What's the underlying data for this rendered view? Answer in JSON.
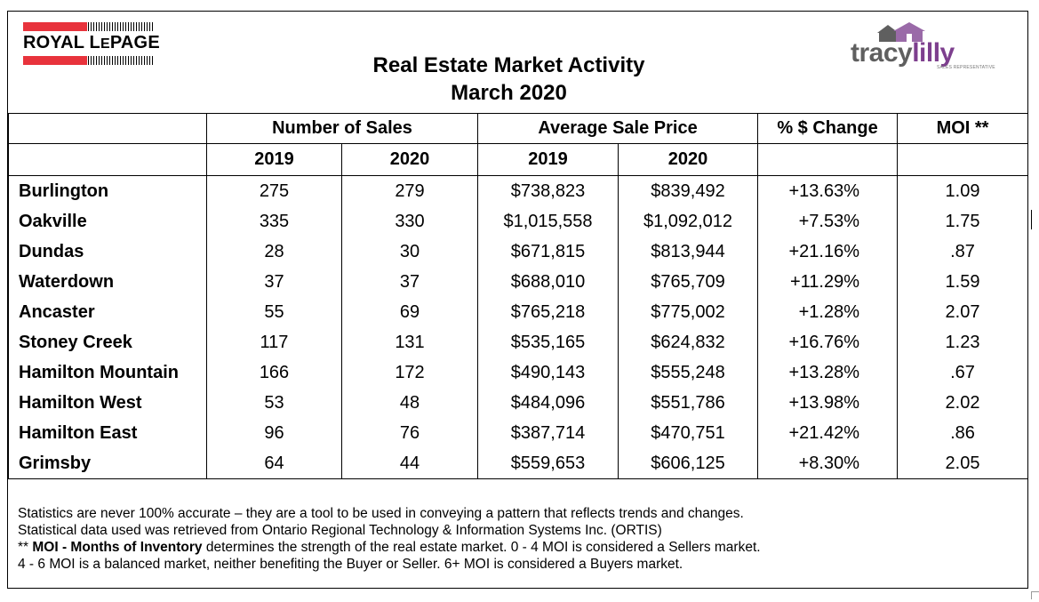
{
  "title": {
    "line1": "Real Estate Market Activity",
    "line2": "March 2020"
  },
  "logos": {
    "left_text_a": "ROYAL L",
    "left_text_b": "E",
    "left_text_c": "PAGE",
    "left_color": "#e8333c",
    "right_word_a": "tracy",
    "right_word_b": "lilly",
    "right_tag": "SALES REPRESENTATIVE",
    "right_color_a": "#5f5f5f",
    "right_color_b": "#7d3f8e"
  },
  "table": {
    "group_headers": [
      "Number of Sales",
      "Average Sale Price",
      "% $ Change",
      "MOI **"
    ],
    "year_headers": [
      "2019",
      "2020",
      "2019",
      "2020"
    ],
    "rows": [
      {
        "area": "Burlington",
        "sales_2019": "275",
        "sales_2020": "279",
        "price_2019": "$738,823",
        "price_2020": "$839,492",
        "change": "+13.63%",
        "moi": "1.09"
      },
      {
        "area": "Oakville",
        "sales_2019": "335",
        "sales_2020": "330",
        "price_2019": "$1,015,558",
        "price_2020": "$1,092,012",
        "change": "+7.53%",
        "moi": "1.75"
      },
      {
        "area": "Dundas",
        "sales_2019": "28",
        "sales_2020": "30",
        "price_2019": "$671,815",
        "price_2020": "$813,944",
        "change": "+21.16%",
        "moi": ".87"
      },
      {
        "area": "Waterdown",
        "sales_2019": "37",
        "sales_2020": "37",
        "price_2019": "$688,010",
        "price_2020": "$765,709",
        "change": "+11.29%",
        "moi": "1.59"
      },
      {
        "area": "Ancaster",
        "sales_2019": "55",
        "sales_2020": "69",
        "price_2019": "$765,218",
        "price_2020": "$775,002",
        "change": "+1.28%",
        "moi": "2.07"
      },
      {
        "area": "Stoney Creek",
        "sales_2019": "117",
        "sales_2020": "131",
        "price_2019": "$535,165",
        "price_2020": "$624,832",
        "change": "+16.76%",
        "moi": "1.23"
      },
      {
        "area": "Hamilton Mountain",
        "sales_2019": "166",
        "sales_2020": "172",
        "price_2019": "$490,143",
        "price_2020": "$555,248",
        "change": "+13.28%",
        "moi": ".67"
      },
      {
        "area": "Hamilton West",
        "sales_2019": "53",
        "sales_2020": "48",
        "price_2019": "$484,096",
        "price_2020": "$551,786",
        "change": "+13.98%",
        "moi": "2.02"
      },
      {
        "area": "Hamilton East",
        "sales_2019": "96",
        "sales_2020": "76",
        "price_2019": "$387,714",
        "price_2020": "$470,751",
        "change": "+21.42%",
        "moi": ".86"
      },
      {
        "area": "Grimsby",
        "sales_2019": "64",
        "sales_2020": "44",
        "price_2019": "$559,653",
        "price_2020": "$606,125",
        "change": "+8.30%",
        "moi": "2.05"
      }
    ]
  },
  "notes": {
    "line1": "Statistics are never 100% accurate – they are a tool to be used in conveying a pattern that reflects trends and changes.",
    "line2": "Statistical data used was retrieved from Ontario Regional Technology & Information Systems Inc. (ORTIS)",
    "line3_prefix": "** ",
    "line3_bold": "MOI - Months of Inventory",
    "line3_rest": " determines the strength of the real estate market. 0 - 4 MOI is considered a Sellers market.",
    "line4": "4 - 6 MOI is a balanced market, neither benefiting the Buyer or Seller. 6+ MOI is considered a Buyers market."
  }
}
